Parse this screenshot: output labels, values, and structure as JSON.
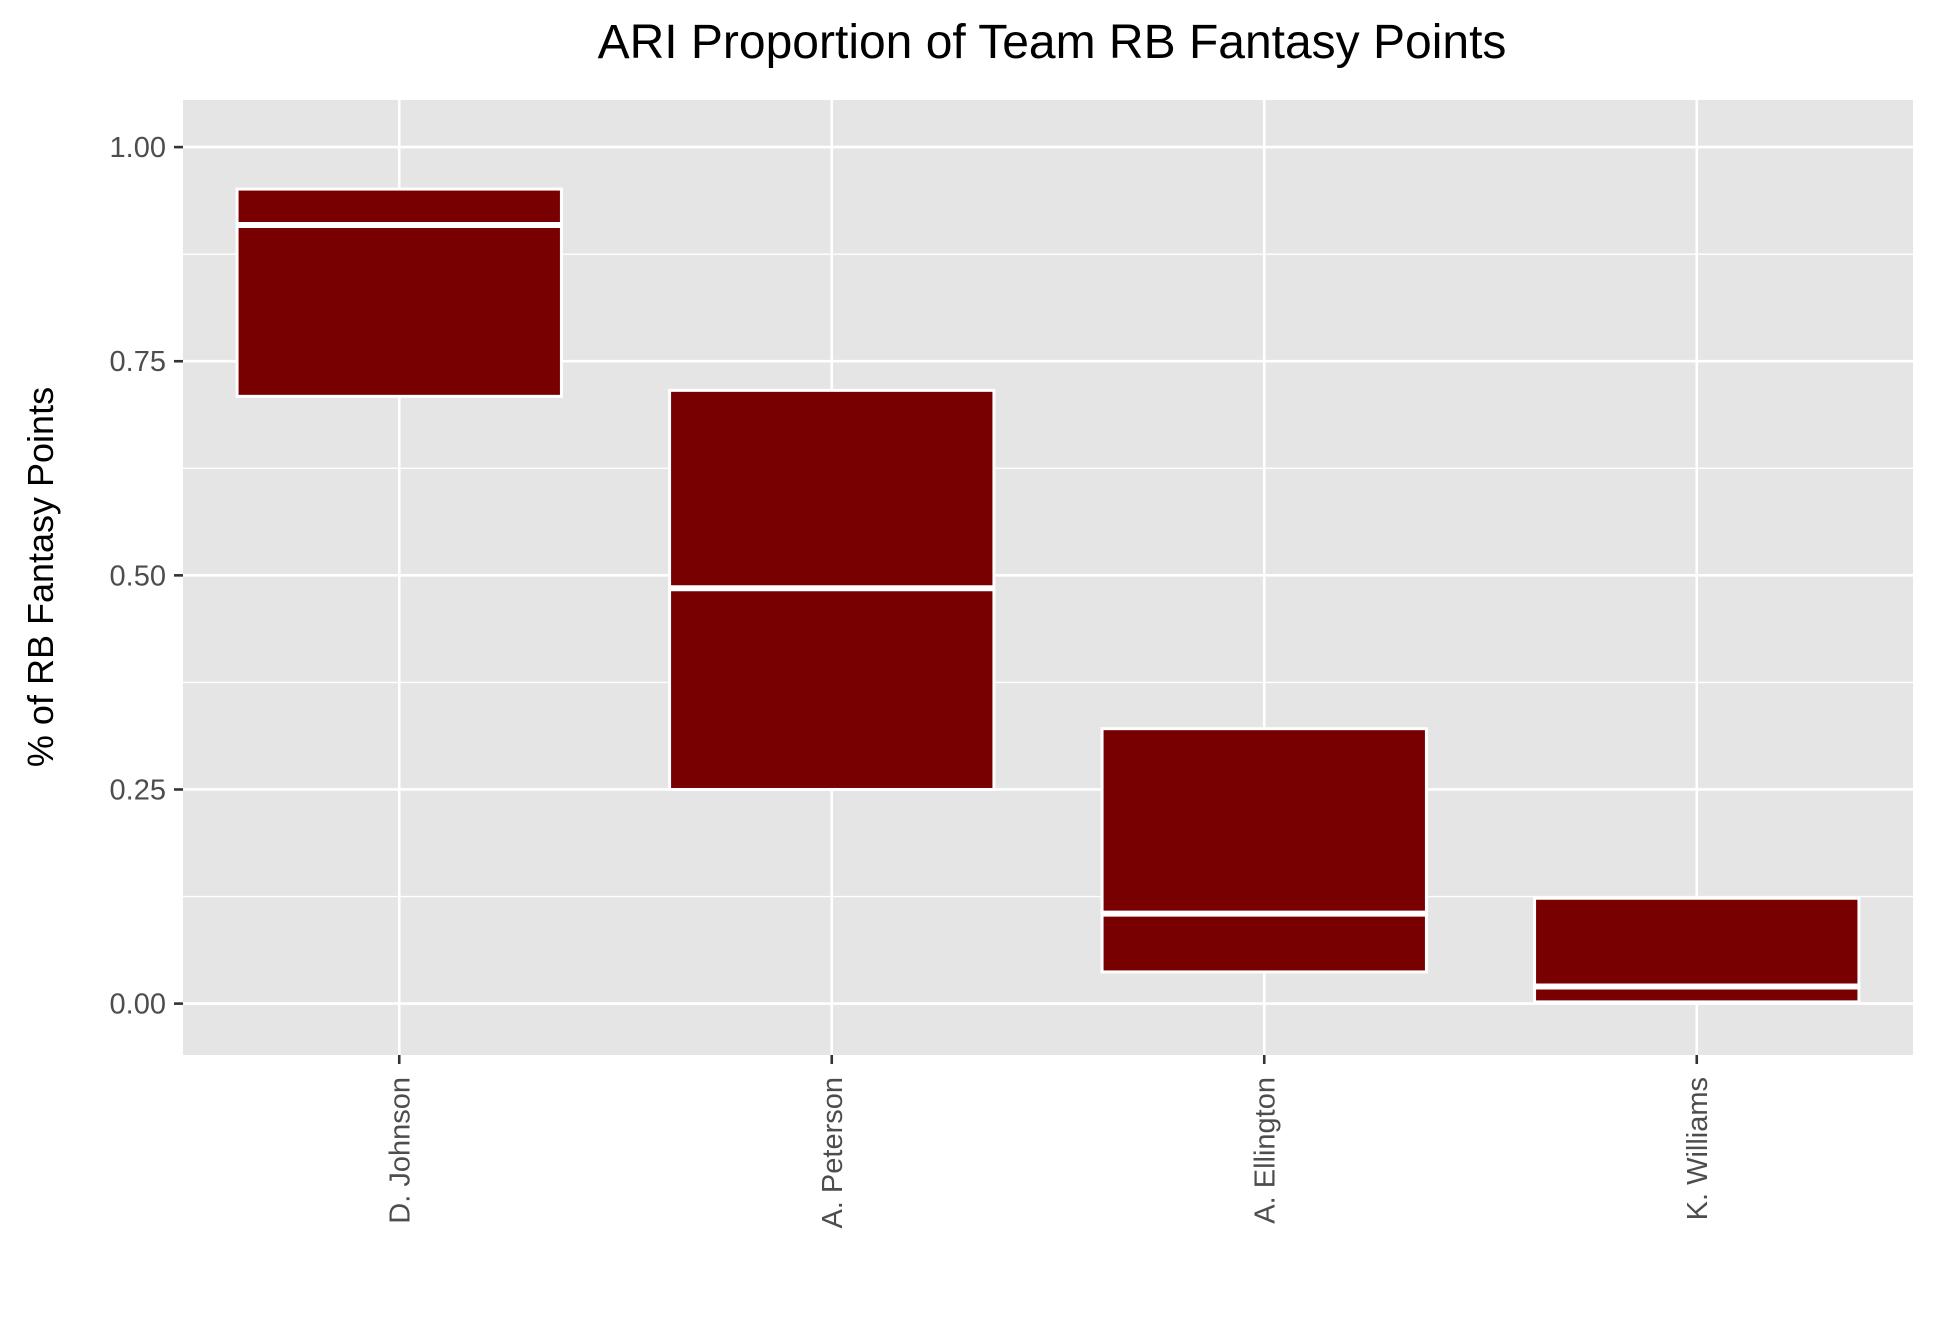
{
  "chart_data": {
    "type": "boxplot",
    "title": "ARI Proportion of Team RB Fantasy Points",
    "xlabel": "",
    "ylabel": "% of RB Fantasy Points",
    "categories": [
      "D. Johnson",
      "A. Peterson",
      "A. Ellington",
      "K. Williams"
    ],
    "boxes": [
      {
        "category": "D. Johnson",
        "q1": 0.709,
        "median": 0.909,
        "q3": 0.951
      },
      {
        "category": "A. Peterson",
        "q1": 0.25,
        "median": 0.485,
        "q3": 0.716
      },
      {
        "category": "A. Ellington",
        "q1": 0.037,
        "median": 0.105,
        "q3": 0.321
      },
      {
        "category": "K. Williams",
        "q1": 0.002,
        "median": 0.02,
        "q3": 0.123
      }
    ],
    "yticks": [
      "0.00",
      "0.25",
      "0.50",
      "0.75",
      "1.00"
    ],
    "ylim": [
      -0.06,
      1.055
    ],
    "grid": true,
    "colors": {
      "panel": "#e5e5e5",
      "grid": "#ffffff",
      "box_fill": "#780000",
      "box_stroke": "#ffffff",
      "tick": "#333333"
    }
  }
}
